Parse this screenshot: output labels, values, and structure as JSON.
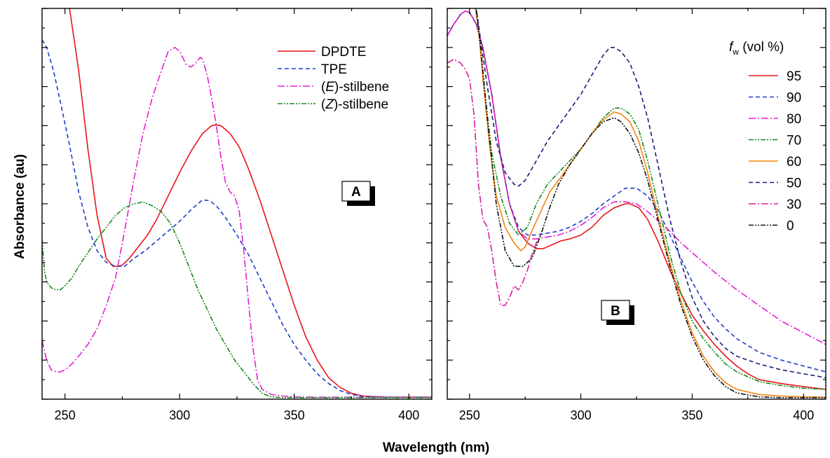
{
  "xlabel": "Wavelength (nm)",
  "ylabel": "Absorbance (au)",
  "chart_data": [
    {
      "type": "line",
      "panel_label": "A",
      "xlim": [
        240,
        410
      ],
      "ylim": [
        0,
        1
      ],
      "xticks": [
        250,
        300,
        350,
        400
      ],
      "y_tick_labels": false,
      "legend_position": "top-right",
      "series": [
        {
          "name": "DPDTE",
          "color": "#e8141a",
          "dash": "solid",
          "x": [
            252,
            256,
            260,
            264,
            268,
            271,
            273,
            275,
            278,
            282,
            286,
            290,
            295,
            300,
            305,
            310,
            314,
            316,
            318,
            322,
            326,
            330,
            335,
            340,
            345,
            350,
            355,
            360,
            365,
            370,
            375,
            380,
            390,
            400,
            410
          ],
          "y": [
            1.0,
            0.84,
            0.64,
            0.47,
            0.36,
            0.34,
            0.34,
            0.343,
            0.36,
            0.39,
            0.42,
            0.46,
            0.52,
            0.58,
            0.635,
            0.68,
            0.7,
            0.702,
            0.7,
            0.68,
            0.645,
            0.59,
            0.51,
            0.42,
            0.33,
            0.24,
            0.16,
            0.1,
            0.055,
            0.03,
            0.015,
            0.008,
            0.005,
            0.005,
            0.005
          ]
        },
        {
          "name": "TPE",
          "color": "#1c3ec9",
          "dash": "6,4",
          "x": [
            240,
            242,
            245,
            248,
            252,
            256,
            260,
            264,
            268,
            272,
            276,
            280,
            285,
            290,
            295,
            300,
            305,
            310,
            313,
            316,
            320,
            325,
            330,
            335,
            340,
            345,
            350,
            355,
            360,
            365,
            370,
            375,
            380,
            390,
            400,
            410
          ],
          "y": [
            0.92,
            0.9,
            0.84,
            0.76,
            0.65,
            0.53,
            0.44,
            0.38,
            0.35,
            0.34,
            0.34,
            0.36,
            0.38,
            0.405,
            0.43,
            0.455,
            0.485,
            0.51,
            0.508,
            0.495,
            0.465,
            0.42,
            0.37,
            0.31,
            0.25,
            0.19,
            0.14,
            0.1,
            0.065,
            0.04,
            0.022,
            0.012,
            0.007,
            0.005,
            0.005,
            0.005
          ]
        },
        {
          "name": "(E)-stilbene",
          "color": "#e020d2",
          "dash": "10,3,2,3",
          "x": [
            240,
            242,
            244,
            246,
            248,
            250,
            253,
            256,
            260,
            264,
            268,
            272,
            276,
            280,
            284,
            288,
            292,
            295,
            298,
            300,
            303,
            305,
            307,
            309,
            310,
            312,
            314,
            316,
            318,
            320,
            322,
            324,
            326,
            328,
            330,
            332,
            334,
            336,
            340,
            345,
            350,
            360,
            370,
            380,
            390,
            400,
            410
          ],
          "y": [
            0.15,
            0.1,
            0.075,
            0.07,
            0.07,
            0.075,
            0.09,
            0.11,
            0.14,
            0.18,
            0.24,
            0.31,
            0.43,
            0.56,
            0.68,
            0.77,
            0.84,
            0.89,
            0.9,
            0.89,
            0.855,
            0.85,
            0.86,
            0.875,
            0.87,
            0.83,
            0.77,
            0.7,
            0.62,
            0.555,
            0.53,
            0.52,
            0.48,
            0.38,
            0.25,
            0.13,
            0.05,
            0.025,
            0.012,
            0.008,
            0.006,
            0.005,
            0.005,
            0.005,
            0.005,
            0.005,
            0.005
          ]
        },
        {
          "name": "(Z)-stilbene",
          "color": "#138a1a",
          "dash": "7,2,2,2,2,2",
          "x": [
            240,
            241,
            242,
            244,
            246,
            248,
            250,
            253,
            256,
            260,
            264,
            268,
            272,
            276,
            280,
            282,
            284,
            286,
            288,
            292,
            296,
            300,
            304,
            308,
            312,
            316,
            320,
            324,
            328,
            332,
            336,
            340,
            345,
            350,
            360,
            380,
            400,
            410
          ],
          "y": [
            0.41,
            0.33,
            0.3,
            0.285,
            0.28,
            0.28,
            0.29,
            0.31,
            0.34,
            0.375,
            0.41,
            0.44,
            0.47,
            0.49,
            0.5,
            0.502,
            0.505,
            0.5,
            0.495,
            0.48,
            0.45,
            0.4,
            0.34,
            0.28,
            0.23,
            0.18,
            0.14,
            0.1,
            0.07,
            0.04,
            0.015,
            0.006,
            0.004,
            0.004,
            0.004,
            0.004,
            0.004,
            0.004
          ]
        }
      ]
    },
    {
      "type": "line",
      "panel_label": "B",
      "xlim": [
        240,
        410
      ],
      "ylim": [
        0,
        1
      ],
      "xticks": [
        250,
        300,
        350,
        400
      ],
      "y_tick_labels": false,
      "legend_title": "f_w (vol %)",
      "legend_title_symbol": "f",
      "legend_title_subscript": "w",
      "legend_title_rest": " (vol %)",
      "legend_position": "top-right",
      "series": [
        {
          "name": "95",
          "color": "#e8141a",
          "dash": "solid",
          "x": [
            240,
            243,
            246,
            248,
            250,
            253,
            256,
            260,
            264,
            268,
            272,
            276,
            280,
            283,
            287,
            291,
            295,
            300,
            305,
            310,
            315,
            320,
            322,
            326,
            330,
            335,
            340,
            345,
            350,
            355,
            360,
            365,
            370,
            375,
            380,
            390,
            400,
            410
          ],
          "y": [
            0.93,
            0.96,
            0.985,
            0.993,
            0.99,
            0.96,
            0.9,
            0.78,
            0.62,
            0.5,
            0.43,
            0.4,
            0.385,
            0.385,
            0.395,
            0.405,
            0.41,
            0.42,
            0.44,
            0.47,
            0.49,
            0.5,
            0.5,
            0.49,
            0.46,
            0.4,
            0.33,
            0.27,
            0.215,
            0.175,
            0.14,
            0.11,
            0.085,
            0.065,
            0.05,
            0.04,
            0.032,
            0.025
          ]
        },
        {
          "name": "90",
          "color": "#1c3ec9",
          "dash": "6,4",
          "x": [
            240,
            243,
            246,
            248,
            250,
            253,
            256,
            260,
            264,
            268,
            272,
            276,
            280,
            285,
            290,
            295,
            300,
            305,
            310,
            315,
            320,
            325,
            330,
            335,
            340,
            345,
            350,
            355,
            360,
            365,
            370,
            380,
            390,
            400,
            410
          ],
          "y": [
            0.93,
            0.96,
            0.985,
            0.993,
            0.99,
            0.96,
            0.9,
            0.78,
            0.62,
            0.5,
            0.44,
            0.42,
            0.42,
            0.425,
            0.43,
            0.44,
            0.455,
            0.475,
            0.5,
            0.52,
            0.54,
            0.54,
            0.52,
            0.48,
            0.42,
            0.36,
            0.3,
            0.25,
            0.21,
            0.18,
            0.155,
            0.12,
            0.1,
            0.085,
            0.07
          ]
        },
        {
          "name": "80",
          "color": "#e020d2",
          "dash": "10,3,2,3",
          "x": [
            240,
            243,
            246,
            248,
            250,
            253,
            256,
            260,
            264,
            268,
            272,
            276,
            280,
            285,
            290,
            295,
            300,
            305,
            310,
            315,
            320,
            325,
            330,
            335,
            340,
            345,
            350,
            355,
            360,
            370,
            380,
            390,
            400,
            410
          ],
          "y": [
            0.93,
            0.96,
            0.985,
            0.993,
            0.99,
            0.96,
            0.9,
            0.78,
            0.62,
            0.5,
            0.43,
            0.41,
            0.41,
            0.415,
            0.42,
            0.43,
            0.445,
            0.465,
            0.49,
            0.505,
            0.505,
            0.5,
            0.48,
            0.455,
            0.43,
            0.4,
            0.375,
            0.35,
            0.325,
            0.28,
            0.24,
            0.2,
            0.17,
            0.14
          ]
        },
        {
          "name": "70",
          "color": "#138a1a",
          "dash": "7,2,2,2,2,2",
          "x": [
            250,
            253,
            255,
            257,
            260,
            264,
            268,
            272,
            276,
            280,
            285,
            290,
            295,
            300,
            305,
            310,
            315,
            318,
            322,
            326,
            330,
            335,
            340,
            345,
            350,
            355,
            360,
            365,
            370,
            380,
            390,
            400,
            410
          ],
          "y": [
            1.02,
            1.0,
            0.9,
            0.78,
            0.63,
            0.52,
            0.45,
            0.42,
            0.44,
            0.5,
            0.55,
            0.58,
            0.61,
            0.64,
            0.68,
            0.72,
            0.745,
            0.745,
            0.73,
            0.69,
            0.61,
            0.49,
            0.37,
            0.27,
            0.2,
            0.155,
            0.12,
            0.09,
            0.07,
            0.045,
            0.035,
            0.028,
            0.025
          ]
        },
        {
          "name": "60",
          "color": "#f6830f",
          "dash": "solid",
          "x": [
            252,
            254,
            256,
            259,
            262,
            266,
            270,
            273,
            275,
            278,
            282,
            286,
            290,
            295,
            300,
            305,
            310,
            315,
            318,
            322,
            326,
            330,
            335,
            340,
            345,
            350,
            355,
            360,
            365,
            370,
            380,
            390,
            400,
            410
          ],
          "y": [
            1.02,
            0.95,
            0.82,
            0.65,
            0.52,
            0.44,
            0.4,
            0.38,
            0.39,
            0.43,
            0.48,
            0.53,
            0.56,
            0.6,
            0.64,
            0.68,
            0.715,
            0.735,
            0.73,
            0.71,
            0.66,
            0.58,
            0.46,
            0.35,
            0.25,
            0.17,
            0.11,
            0.07,
            0.042,
            0.025,
            0.012,
            0.008,
            0.006,
            0.005
          ]
        },
        {
          "name": "50",
          "color": "#1a1a78",
          "dash": "6,4",
          "x": [
            250,
            253,
            255,
            258,
            262,
            266,
            270,
            272,
            275,
            280,
            285,
            290,
            295,
            300,
            305,
            310,
            313,
            315,
            318,
            322,
            326,
            330,
            335,
            340,
            345,
            350,
            355,
            360,
            365,
            370,
            380,
            390,
            400,
            410
          ],
          "y": [
            1.02,
            1.0,
            0.92,
            0.8,
            0.66,
            0.58,
            0.55,
            0.545,
            0.56,
            0.61,
            0.66,
            0.7,
            0.74,
            0.78,
            0.83,
            0.88,
            0.9,
            0.9,
            0.89,
            0.86,
            0.8,
            0.72,
            0.59,
            0.46,
            0.35,
            0.26,
            0.2,
            0.16,
            0.13,
            0.11,
            0.09,
            0.075,
            0.065,
            0.055
          ]
        },
        {
          "name": "30",
          "color": "#d61e9e",
          "dash": "10,3,2,3",
          "x": [
            240,
            243,
            246,
            248,
            250,
            252,
            254,
            256,
            258,
            260,
            262,
            264,
            266,
            268,
            270,
            272,
            274,
            276,
            278,
            280,
            282
          ],
          "y": [
            0.86,
            0.87,
            0.86,
            0.845,
            0.82,
            0.73,
            0.55,
            0.46,
            0.44,
            0.38,
            0.3,
            0.24,
            0.24,
            0.26,
            0.29,
            0.28,
            0.3,
            0.33,
            0.37,
            0.4,
            0.42
          ]
        },
        {
          "name": "0",
          "color": "#111111",
          "dash": "7,2,2,2,2,2",
          "x": [
            250,
            253,
            255,
            258,
            262,
            266,
            270,
            274,
            278,
            282,
            286,
            290,
            295,
            300,
            305,
            310,
            315,
            318,
            322,
            326,
            330,
            335,
            340,
            345,
            350,
            355,
            360,
            365,
            370,
            380,
            390,
            400,
            410
          ],
          "y": [
            1.02,
            1.0,
            0.9,
            0.72,
            0.5,
            0.38,
            0.34,
            0.34,
            0.36,
            0.42,
            0.49,
            0.55,
            0.6,
            0.64,
            0.68,
            0.71,
            0.72,
            0.71,
            0.68,
            0.63,
            0.56,
            0.45,
            0.34,
            0.24,
            0.16,
            0.1,
            0.06,
            0.032,
            0.016,
            0.006,
            0.004,
            0.004,
            0.004
          ]
        }
      ]
    }
  ]
}
